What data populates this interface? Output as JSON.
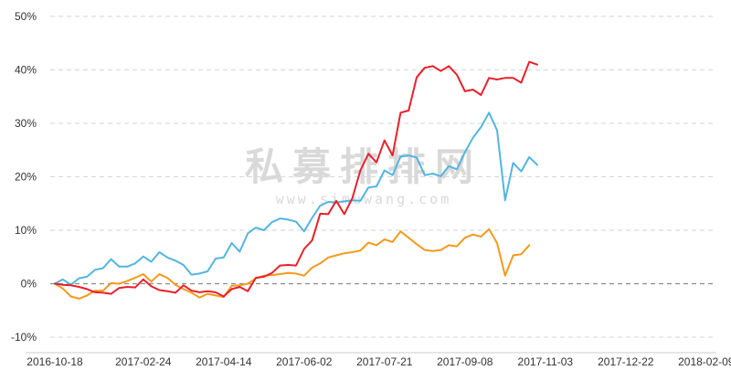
{
  "watermark": {
    "main": "私募排排网",
    "sub": "www.simuwang.com"
  },
  "chart_data": {
    "type": "line",
    "ylim": [
      -10,
      50
    ],
    "yticks": [
      50,
      40,
      30,
      20,
      10,
      0,
      -10
    ],
    "ytick_suffix": "%",
    "grid": true,
    "legend": "none",
    "x_tick_labels": [
      "2016-10-18",
      "2017-02-24",
      "2017-04-14",
      "2017-06-02",
      "2017-07-21",
      "2017-09-08",
      "2017-11-03",
      "2017-12-22",
      "2018-02-09"
    ],
    "x_tick_positions": [
      0,
      11,
      21,
      31,
      41,
      51,
      61,
      71,
      81
    ],
    "zero_line": true,
    "series": [
      {
        "color": "#e8202a",
        "values": [
          0,
          -0.2,
          -0.3,
          -0.6,
          -1.0,
          -1.6,
          -1.7,
          -1.9,
          -0.8,
          -0.6,
          -0.7,
          0.8,
          -0.5,
          -1.2,
          -1.4,
          -1.7,
          -0.3,
          -1.3,
          -1.6,
          -1.4,
          -1.6,
          -2.4,
          -1.0,
          -0.6,
          -1.4,
          1.1,
          1.3,
          2.0,
          3.4,
          3.5,
          3.4,
          6.5,
          8.1,
          13.1,
          13.0,
          15.5,
          13.0,
          16.0,
          21.2,
          24.3,
          22.7,
          26.8,
          24.0,
          32.0,
          32.4,
          38.6,
          40.4,
          40.7,
          39.8,
          40.7,
          39.1,
          36.0,
          36.3,
          35.3,
          38.5,
          38.2,
          38.5,
          38.5,
          37.6,
          41.5,
          41.0
        ]
      },
      {
        "color": "#53b5e0",
        "values": [
          0,
          0.8,
          -0.2,
          1.0,
          1.3,
          2.6,
          2.9,
          4.6,
          3.2,
          3.2,
          3.8,
          5.1,
          4.1,
          5.9,
          4.9,
          4.3,
          3.5,
          1.7,
          1.9,
          2.3,
          4.7,
          4.9,
          7.6,
          6.0,
          9.4,
          10.5,
          10.0,
          11.5,
          12.2,
          12.0,
          11.6,
          9.8,
          12.3,
          14.6,
          15.3,
          15.2,
          15.4,
          15.6,
          15.5,
          18.0,
          18.2,
          21.2,
          20.3,
          23.8,
          24.0,
          23.6,
          20.3,
          20.6,
          20.1,
          22.0,
          21.4,
          24.6,
          27.3,
          29.3,
          32.0,
          28.7,
          15.6,
          22.6,
          21.0,
          23.7,
          22.2
        ]
      },
      {
        "color": "#f39a1d",
        "values": [
          0,
          -0.9,
          -2.4,
          -2.8,
          -2.2,
          -1.3,
          -1.3,
          0.1,
          0.0,
          0.5,
          1.1,
          1.8,
          0.4,
          1.8,
          1.1,
          -0.2,
          -1.0,
          -1.7,
          -2.6,
          -1.9,
          -2.2,
          -2.5,
          -0.4,
          -0.3,
          0.0,
          1.0,
          1.5,
          1.6,
          1.8,
          2.0,
          1.9,
          1.5,
          3.0,
          3.8,
          4.9,
          5.3,
          5.7,
          5.9,
          6.2,
          7.7,
          7.2,
          8.3,
          7.8,
          9.8,
          8.6,
          7.4,
          6.3,
          6.1,
          6.3,
          7.2,
          7.0,
          8.6,
          9.2,
          8.8,
          10.2,
          7.6,
          1.5,
          5.3,
          5.5,
          7.2
        ]
      }
    ]
  }
}
